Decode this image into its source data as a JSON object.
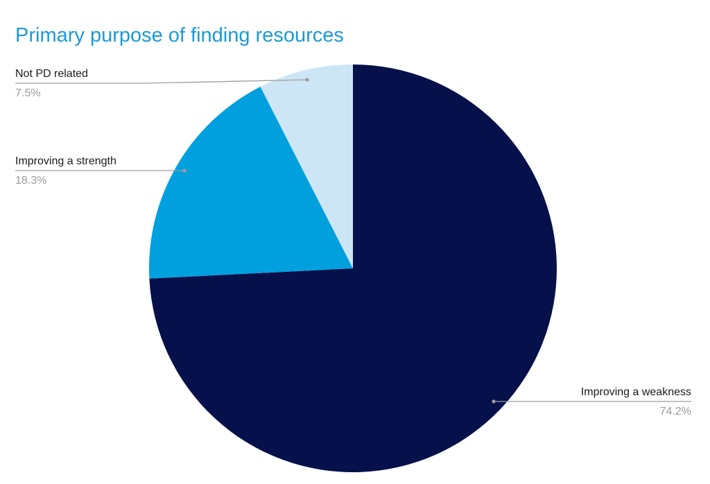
{
  "chart_data": {
    "type": "pie",
    "title": "Primary purpose of finding resources",
    "categories": [
      "Improving a weakness",
      "Improving a strength",
      "Not PD related"
    ],
    "values": [
      74.2,
      18.3,
      7.5
    ],
    "value_labels": [
      "74.2%",
      "18.3%",
      "7.5%"
    ],
    "colors": [
      "#06104a",
      "#00a0df",
      "#cce6f6"
    ],
    "title_color": "#1a9ad6",
    "leader_line_color": "#9e9e9e",
    "value_label_color": "#9a9a9a",
    "start_angle": "12 o'clock",
    "direction": "clockwise",
    "legend": "none"
  }
}
